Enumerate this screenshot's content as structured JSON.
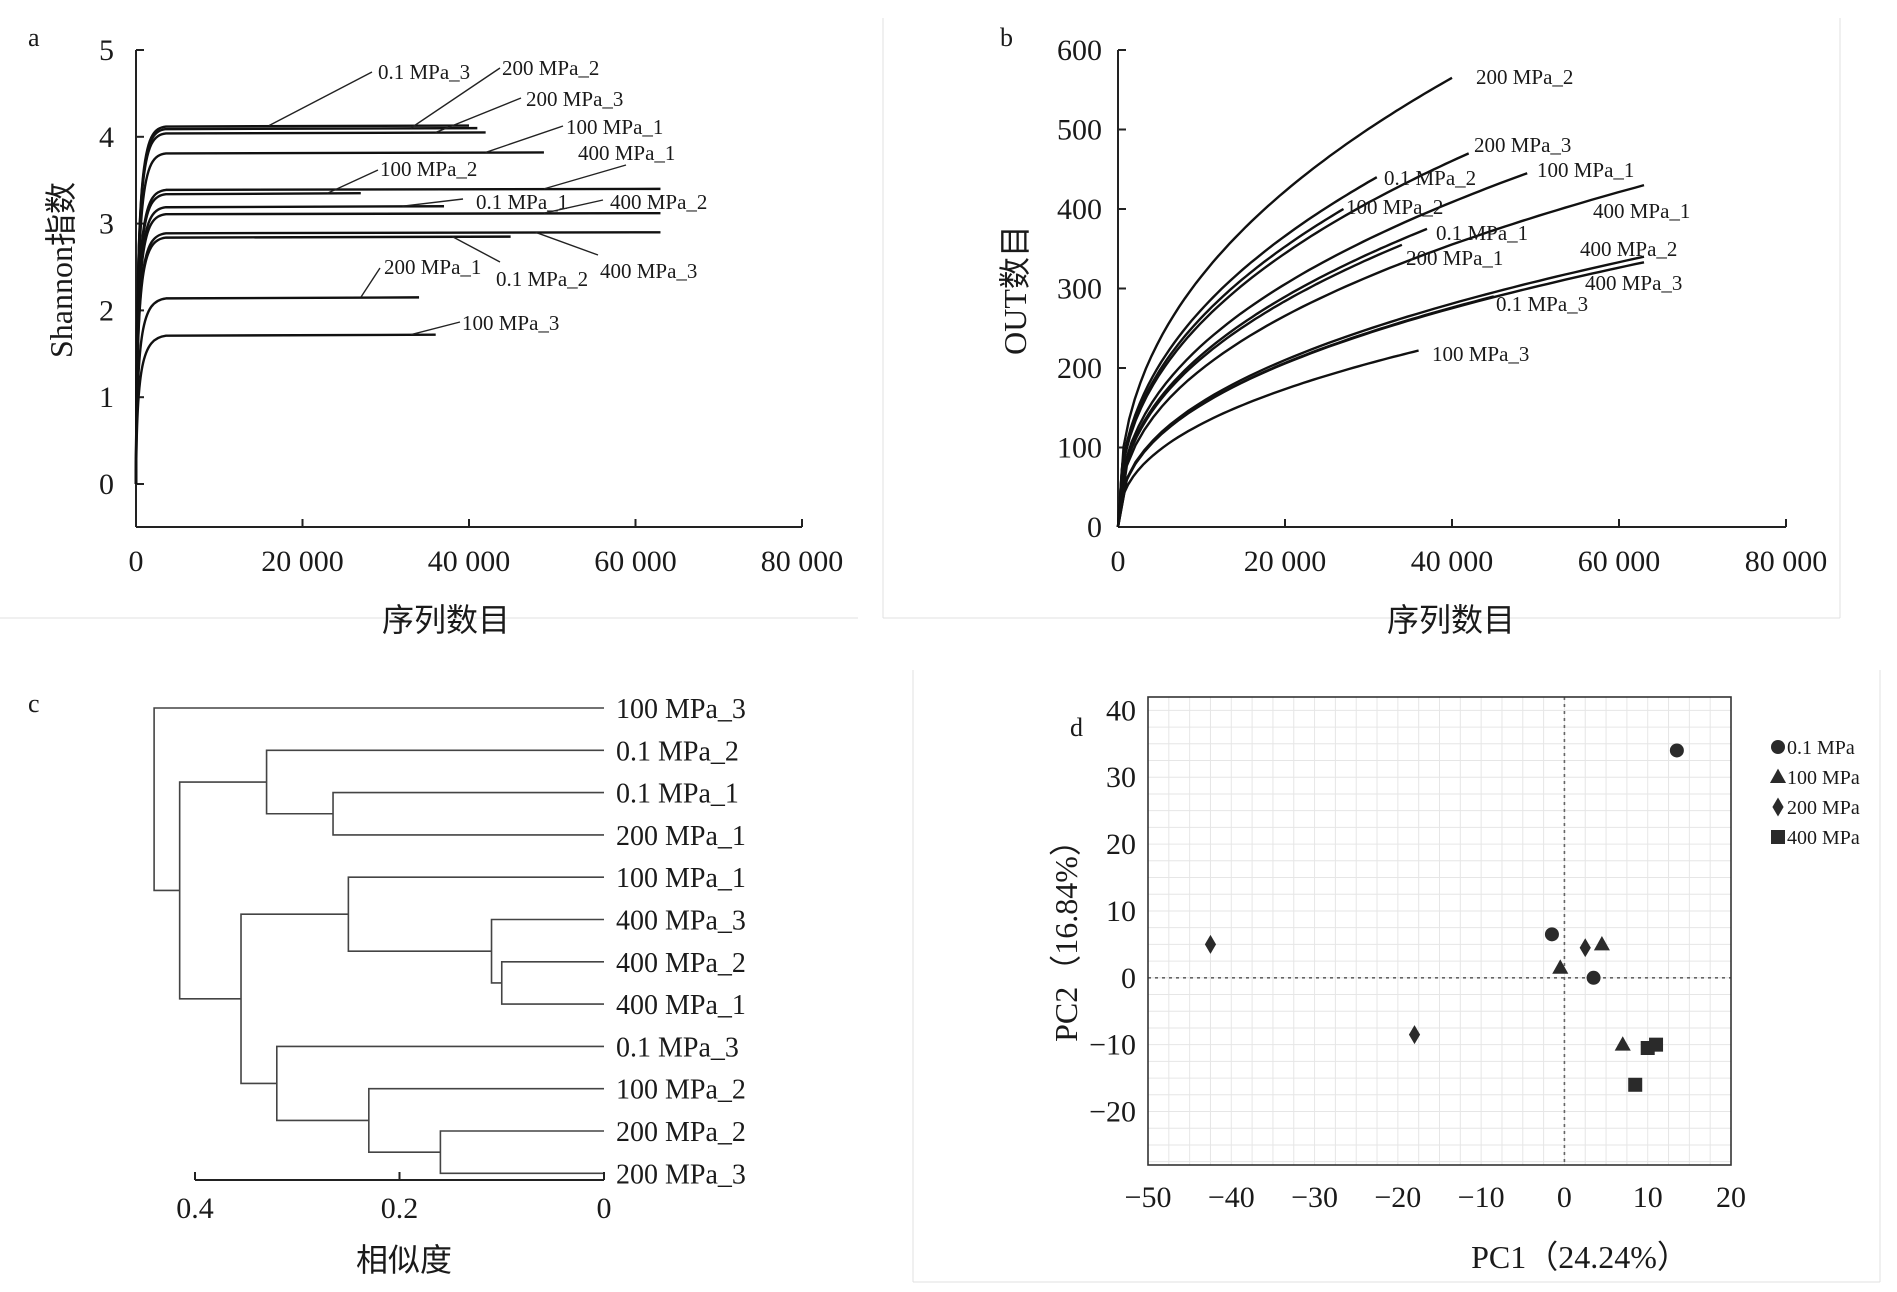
{
  "chart_data": [
    {
      "panel": "a",
      "type": "line",
      "xlabel": "序列数目",
      "ylabel": "Shannon指数",
      "xlim": [
        0,
        80000
      ],
      "ylim": [
        0,
        5
      ],
      "xticks": [
        "0",
        "20 000",
        "40 000",
        "60 000",
        "80 000"
      ],
      "yticks": [
        "0",
        "1",
        "2",
        "3",
        "4",
        "5"
      ],
      "series": [
        {
          "name": "0.1 MPa_3",
          "plateau": 4.13,
          "max_x": 40000
        },
        {
          "name": "200 MPa_2",
          "plateau": 4.1,
          "max_x": 41000
        },
        {
          "name": "200 MPa_3",
          "plateau": 4.05,
          "max_x": 42000
        },
        {
          "name": "100 MPa_1",
          "plateau": 3.82,
          "max_x": 49000
        },
        {
          "name": "400 MPa_1",
          "plateau": 3.4,
          "max_x": 63000
        },
        {
          "name": "100 MPa_2",
          "plateau": 3.35,
          "max_x": 27000
        },
        {
          "name": "0.1 MPa_1",
          "plateau": 3.2,
          "max_x": 37000
        },
        {
          "name": "400 MPa_2",
          "plateau": 3.12,
          "max_x": 63000
        },
        {
          "name": "400 MPa_3",
          "plateau": 2.9,
          "max_x": 63000
        },
        {
          "name": "0.1 MPa_2",
          "plateau": 2.85,
          "max_x": 45000
        },
        {
          "name": "200 MPa_1",
          "plateau": 2.15,
          "max_x": 34000
        },
        {
          "name": "100 MPa_3",
          "plateau": 1.72,
          "max_x": 36000
        }
      ]
    },
    {
      "panel": "b",
      "type": "line",
      "xlabel": "序列数目",
      "ylabel": "OUT数目",
      "xlim": [
        0,
        80000
      ],
      "ylim": [
        0,
        600
      ],
      "xticks": [
        "0",
        "20 000",
        "40 000",
        "60 000",
        "80 000"
      ],
      "yticks": [
        "0",
        "100",
        "200",
        "300",
        "400",
        "500",
        "600"
      ],
      "series": [
        {
          "name": "200 MPa_2",
          "end": [
            40000,
            565
          ]
        },
        {
          "name": "200 MPa_3",
          "end": [
            42000,
            470
          ]
        },
        {
          "name": "0.1 MPa_2",
          "end": [
            31000,
            440
          ]
        },
        {
          "name": "100 MPa_1",
          "end": [
            49000,
            445
          ]
        },
        {
          "name": "400 MPa_1",
          "end": [
            63000,
            430
          ]
        },
        {
          "name": "100 MPa_2",
          "end": [
            27000,
            400
          ]
        },
        {
          "name": "0.1 MPa_1",
          "end": [
            37000,
            375
          ]
        },
        {
          "name": "200 MPa_1",
          "end": [
            34000,
            355
          ]
        },
        {
          "name": "400 MPa_2",
          "end": [
            63000,
            340
          ]
        },
        {
          "name": "400 MPa_3",
          "end": [
            63000,
            333
          ]
        },
        {
          "name": "0.1 MPa_3",
          "end": [
            45000,
            290
          ]
        },
        {
          "name": "100 MPa_3",
          "end": [
            36000,
            222
          ]
        }
      ]
    },
    {
      "panel": "c",
      "type": "dendrogram",
      "xlabel": "相似度",
      "xlim": [
        0.4,
        0
      ],
      "xticks": [
        "0.4",
        "0.2",
        "0"
      ],
      "leaves": [
        "100 MPa_3",
        "0.1 MPa_2",
        "0.1 MPa_1",
        "200 MPa_1",
        "100 MPa_1",
        "400 MPa_3",
        "400 MPa_2",
        "400 MPa_1",
        "0.1 MPa_3",
        "100 MPa_2",
        "200 MPa_2",
        "200 MPa_3"
      ],
      "merges": [
        {
          "a": "400 MPa_2",
          "b": "400 MPa_1",
          "height": 0.1
        },
        {
          "a": "400 MPa_3",
          "b": "400 MPa_2,400 MPa_1",
          "height": 0.11
        },
        {
          "a": "100 MPa_1",
          "b": "400 MPa_3,400 MPa_2,400 MPa_1",
          "height": 0.25
        },
        {
          "a": "200 MPa_2",
          "b": "200 MPa_3",
          "height": 0.16
        },
        {
          "a": "100 MPa_2",
          "b": "200 MPa_2,200 MPa_3",
          "height": 0.23
        },
        {
          "a": "0.1 MPa_3",
          "b": "100 MPa_2,200 MPa_2,200 MPa_3",
          "height": 0.32
        },
        {
          "a": "100 MPa_1 cluster",
          "b": "0.1 MPa_3 cluster",
          "height": 0.355
        },
        {
          "a": "0.1 MPa_1",
          "b": "200 MPa_1",
          "height": 0.265
        },
        {
          "a": "0.1 MPa_2",
          "b": "0.1 MPa_1,200 MPa_1",
          "height": 0.33
        },
        {
          "a": "0.1 MPa_2 cluster",
          "b": "100 MPa_1 + 0.1 MPa_3 clusters",
          "height": 0.415
        },
        {
          "a": "100 MPa_3",
          "b": "all others",
          "height": 0.44
        }
      ]
    },
    {
      "panel": "d",
      "type": "scatter",
      "xlabel": "PC1（24.24%）",
      "ylabel": "PC2（16.84%）",
      "xlim": [
        -50,
        20
      ],
      "ylim": [
        -28,
        42
      ],
      "xticks": [
        "−50",
        "−40",
        "−30",
        "−20",
        "−10",
        "0",
        "10",
        "20"
      ],
      "yticks": [
        "−20",
        "−10",
        "0",
        "10",
        "20",
        "30",
        "40"
      ],
      "grid": true,
      "legend_position": "right",
      "series": [
        {
          "name": "0.1 MPa",
          "marker": "circle",
          "points": [
            [
              13.5,
              34.0
            ],
            [
              -1.5,
              6.5
            ],
            [
              3.5,
              0.0
            ]
          ]
        },
        {
          "name": "100 MPa",
          "marker": "triangle",
          "points": [
            [
              4.5,
              5.0
            ],
            [
              -0.5,
              1.5
            ],
            [
              7.0,
              -10.0
            ]
          ]
        },
        {
          "name": "200 MPa",
          "marker": "diamond",
          "points": [
            [
              -42.5,
              5.0
            ],
            [
              -18.0,
              -8.5
            ],
            [
              2.5,
              4.5
            ]
          ]
        },
        {
          "name": "400 MPa",
          "marker": "square",
          "points": [
            [
              11.0,
              -10.0
            ],
            [
              10.0,
              -10.5
            ],
            [
              8.5,
              -16.0
            ]
          ]
        }
      ]
    }
  ],
  "panel_labels": {
    "a": "a",
    "b": "b",
    "c": "c",
    "d": "d"
  }
}
